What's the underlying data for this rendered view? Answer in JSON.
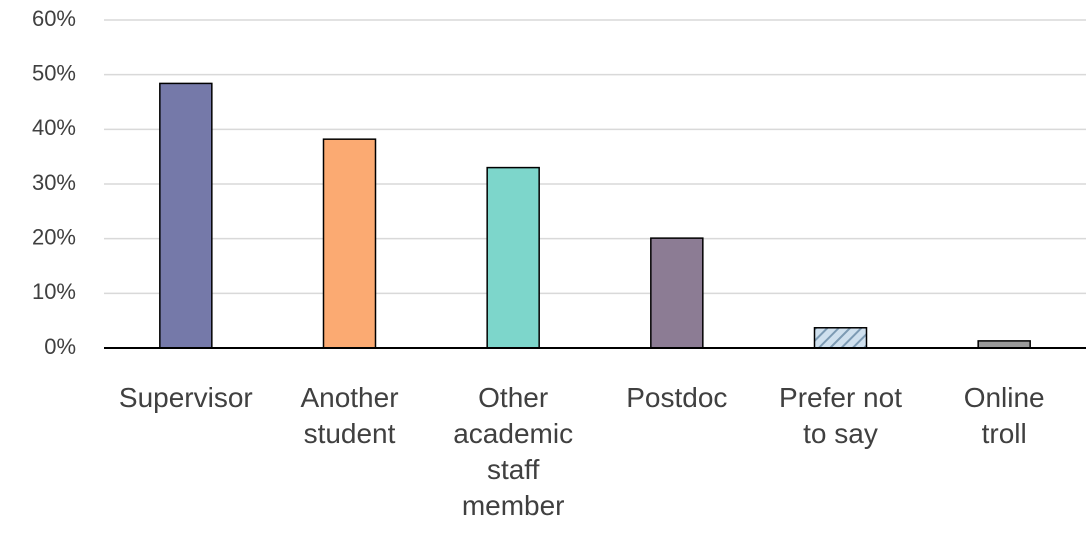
{
  "chart_data": {
    "type": "bar",
    "title": "",
    "xlabel": "",
    "ylabel": "",
    "categories": [
      "Supervisor",
      "Another student",
      "Other academic staff member",
      "Postdoc",
      "Prefer not to say",
      "Online troll"
    ],
    "category_lines": [
      [
        "Supervisor"
      ],
      [
        "Another",
        "student"
      ],
      [
        "Other",
        "academic",
        "staff",
        "member"
      ],
      [
        "Postdoc"
      ],
      [
        "Prefer not",
        "to say"
      ],
      [
        "Online",
        "troll"
      ]
    ],
    "values": [
      48.4,
      38.2,
      33.0,
      20.1,
      3.7,
      1.3
    ],
    "ylim": [
      0,
      60
    ],
    "ytick_values": [
      0,
      10,
      20,
      30,
      40,
      50,
      60
    ],
    "ytick_labels": [
      "0%",
      "10%",
      "20%",
      "30%",
      "40%",
      "50%",
      "60%"
    ],
    "grid": true,
    "legend": "none",
    "colors": [
      "#7579a9",
      "#fbaa72",
      "#7dd6cb",
      "#8c7c94",
      "#cfe0ee",
      "#999999"
    ],
    "hatched": [
      false,
      false,
      false,
      false,
      true,
      false
    ],
    "hatch_color": "#7c9ab3"
  }
}
